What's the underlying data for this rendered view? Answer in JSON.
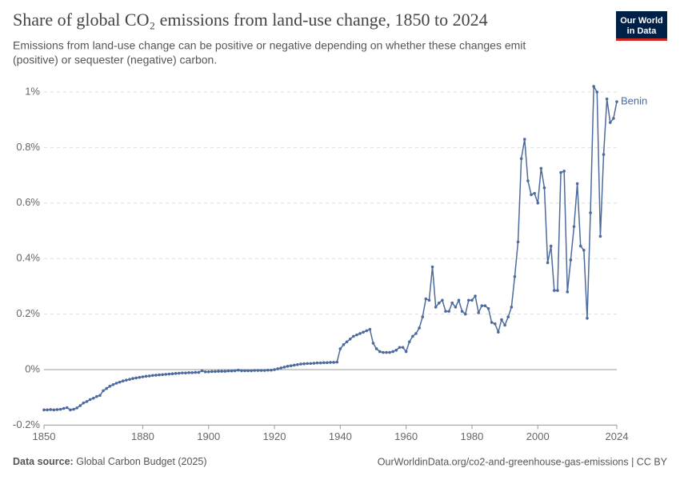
{
  "chart_data": {
    "type": "line",
    "title": "Share of global CO₂ emissions from land-use change, 1850 to 2024",
    "subtitle_lines": [
      "Emissions from land-use change can be positive or negative depending on whether these changes emit",
      "(positive) or sequester (negative) carbon."
    ],
    "logo_lines": [
      "Our World",
      "in Data"
    ],
    "source_label": "Data source:",
    "source": "Global Carbon Budget (2025)",
    "credit": "OurWorldinData.org/co2-and-greenhouse-gas-emissions | CC BY",
    "xlim": [
      1850,
      2024
    ],
    "xticks": [
      1850,
      1880,
      1900,
      1920,
      1940,
      1960,
      1980,
      2000,
      2024
    ],
    "ylim": [
      -0.2,
      1.03
    ],
    "yticks": [
      {
        "value": -0.2,
        "label": "-0.2%"
      },
      {
        "value": 0,
        "label": "0%"
      },
      {
        "value": 0.2,
        "label": "0.2%"
      },
      {
        "value": 0.4,
        "label": "0.4%"
      },
      {
        "value": 0.6,
        "label": "0.6%"
      },
      {
        "value": 0.8,
        "label": "0.8%"
      },
      {
        "value": 1,
        "label": "1%"
      }
    ],
    "grid": true,
    "x": [
      1850,
      1851,
      1852,
      1853,
      1854,
      1855,
      1856,
      1857,
      1858,
      1859,
      1860,
      1861,
      1862,
      1863,
      1864,
      1865,
      1866,
      1867,
      1868,
      1869,
      1870,
      1871,
      1872,
      1873,
      1874,
      1875,
      1876,
      1877,
      1878,
      1879,
      1880,
      1881,
      1882,
      1883,
      1884,
      1885,
      1886,
      1887,
      1888,
      1889,
      1890,
      1891,
      1892,
      1893,
      1894,
      1895,
      1896,
      1897,
      1898,
      1899,
      1900,
      1901,
      1902,
      1903,
      1904,
      1905,
      1906,
      1907,
      1908,
      1909,
      1910,
      1911,
      1912,
      1913,
      1914,
      1915,
      1916,
      1917,
      1918,
      1919,
      1920,
      1921,
      1922,
      1923,
      1924,
      1925,
      1926,
      1927,
      1928,
      1929,
      1930,
      1931,
      1932,
      1933,
      1934,
      1935,
      1936,
      1937,
      1938,
      1939,
      1940,
      1941,
      1942,
      1943,
      1944,
      1945,
      1946,
      1947,
      1948,
      1949,
      1950,
      1951,
      1952,
      1953,
      1954,
      1955,
      1956,
      1957,
      1958,
      1959,
      1960,
      1961,
      1962,
      1963,
      1964,
      1965,
      1966,
      1967,
      1968,
      1969,
      1970,
      1971,
      1972,
      1973,
      1974,
      1975,
      1976,
      1977,
      1978,
      1979,
      1980,
      1981,
      1982,
      1983,
      1984,
      1985,
      1986,
      1987,
      1988,
      1989,
      1990,
      1991,
      1992,
      1993,
      1994,
      1995,
      1996,
      1997,
      1998,
      1999,
      2000,
      2001,
      2002,
      2003,
      2004,
      2005,
      2006,
      2007,
      2008,
      2009,
      2010,
      2011,
      2012,
      2013,
      2014,
      2015,
      2016,
      2017,
      2018,
      2019,
      2020,
      2021,
      2022,
      2023,
      2024
    ],
    "series": [
      {
        "name": "Benin",
        "color": "#4c6a9c",
        "values": [
          -0.145,
          -0.145,
          -0.144,
          -0.145,
          -0.144,
          -0.143,
          -0.14,
          -0.137,
          -0.145,
          -0.143,
          -0.138,
          -0.13,
          -0.12,
          -0.115,
          -0.108,
          -0.103,
          -0.097,
          -0.093,
          -0.076,
          -0.068,
          -0.06,
          -0.054,
          -0.049,
          -0.045,
          -0.041,
          -0.038,
          -0.035,
          -0.032,
          -0.03,
          -0.028,
          -0.026,
          -0.024,
          -0.023,
          -0.021,
          -0.02,
          -0.019,
          -0.018,
          -0.017,
          -0.016,
          -0.015,
          -0.014,
          -0.013,
          -0.012,
          -0.012,
          -0.011,
          -0.011,
          -0.01,
          -0.01,
          -0.004,
          -0.008,
          -0.008,
          -0.007,
          -0.007,
          -0.006,
          -0.006,
          -0.006,
          -0.005,
          -0.005,
          -0.004,
          -0.002,
          -0.004,
          -0.004,
          -0.004,
          -0.004,
          -0.003,
          -0.003,
          -0.003,
          -0.003,
          -0.002,
          -0.002,
          0.0,
          0.003,
          0.006,
          0.009,
          0.012,
          0.014,
          0.016,
          0.018,
          0.02,
          0.021,
          0.022,
          0.022,
          0.023,
          0.024,
          0.024,
          0.025,
          0.025,
          0.026,
          0.026,
          0.027,
          0.075,
          0.09,
          0.1,
          0.11,
          0.12,
          0.125,
          0.13,
          0.135,
          0.14,
          0.145,
          0.095,
          0.075,
          0.065,
          0.062,
          0.062,
          0.062,
          0.065,
          0.07,
          0.08,
          0.08,
          0.065,
          0.1,
          0.12,
          0.13,
          0.15,
          0.19,
          0.255,
          0.25,
          0.37,
          0.225,
          0.24,
          0.25,
          0.21,
          0.21,
          0.24,
          0.225,
          0.25,
          0.21,
          0.2,
          0.25,
          0.25,
          0.265,
          0.205,
          0.23,
          0.23,
          0.22,
          0.17,
          0.165,
          0.135,
          0.18,
          0.16,
          0.19,
          0.225,
          0.335,
          0.46,
          0.76,
          0.83,
          0.68,
          0.63,
          0.635,
          0.6,
          0.725,
          0.655,
          0.385,
          0.445,
          0.285,
          0.285,
          0.71,
          0.715,
          0.28,
          0.395,
          0.515,
          0.67,
          0.445,
          0.43,
          0.185,
          0.565,
          1.02,
          1.0,
          0.48,
          0.775,
          0.975,
          0.89,
          0.905,
          0.965
        ]
      }
    ]
  }
}
